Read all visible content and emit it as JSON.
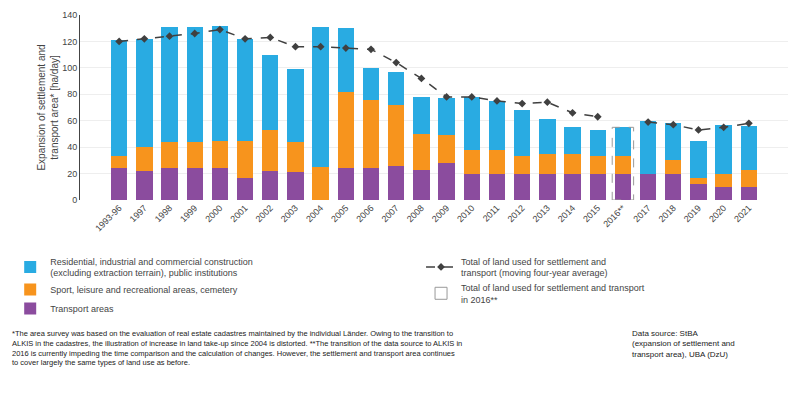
{
  "chart_data": {
    "type": "bar",
    "stacked": true,
    "grid": true,
    "legend": "bottom",
    "ylabel": "Expansion of settlement and\ntransport area* [ha/day]",
    "categories": [
      "1993-96",
      "1997",
      "1998",
      "1999",
      "2000",
      "2001",
      "2002",
      "2003",
      "2004",
      "2005",
      "2006",
      "2007",
      "2008",
      "2009",
      "2010",
      "2011",
      "2012",
      "2013",
      "2014",
      "2015",
      "2016**",
      "2017",
      "2018",
      "2019",
      "2020",
      "2021"
    ],
    "series": [
      {
        "name": "Transport areas",
        "type": "bar",
        "color": "#8B4C9E",
        "values": [
          24,
          22,
          24,
          24,
          24,
          17,
          22,
          21,
          0,
          24,
          24,
          26,
          23,
          28,
          20,
          20,
          20,
          20,
          20,
          20,
          20,
          20,
          20,
          12,
          10,
          10
        ]
      },
      {
        "name": "Sport, leisure and recreational areas, cemetery",
        "type": "bar",
        "color": "#F7941D",
        "values": [
          9,
          18,
          20,
          20,
          21,
          28,
          31,
          23,
          25,
          58,
          52,
          46,
          27,
          21,
          18,
          18,
          13,
          15,
          15,
          13,
          13,
          0,
          10,
          5,
          10,
          13
        ]
      },
      {
        "name": "Residential, industrial and commercial construction\n(excluding extraction terrain), public institutions",
        "type": "bar",
        "color": "#29ABE2",
        "values": [
          88,
          82,
          87,
          87,
          87,
          77,
          57,
          55,
          106,
          48,
          24,
          25,
          28,
          28,
          40,
          37,
          35,
          26,
          20,
          20,
          22,
          40,
          28,
          28,
          37,
          33
        ]
      },
      {
        "name": "Total of land used for settlement and\ntransport (moving four-year average)",
        "type": "line",
        "color": "#404040",
        "line_style": "dashed",
        "marker": "diamond",
        "values": [
          120,
          122,
          124,
          126,
          129,
          122,
          123,
          116,
          116,
          115,
          114,
          104,
          92,
          78,
          78,
          75,
          73,
          74,
          66,
          63,
          null,
          59,
          57,
          53,
          55,
          58
        ]
      }
    ],
    "annotations": [
      {
        "category": "2016**",
        "text": "Total of land used for settlement and transport\nin 2016**",
        "color": "#999999",
        "line_style": "dashed"
      }
    ],
    "footnote": "*The area survey was based on the evaluation of real estate cadastres maintained by the individual Länder. Owing to the transition to\nALKIS in the cadastres, the illustration of increase in land take-up since 2004 is distorted. **The transition of the data source to ALKIS in\n2016 is currently impeding the time comparison and the calculation of changes. However, the settlement and transport area continues\nto cover largely the same types of land use as before.",
    "source": "Data source: StBA\n(expansion of settlement and\ntransport area), UBA (DzU)",
    "ylim": [
      0,
      140
    ],
    "yticks": [
      0,
      20,
      40,
      60,
      80,
      100,
      120,
      140
    ]
  }
}
